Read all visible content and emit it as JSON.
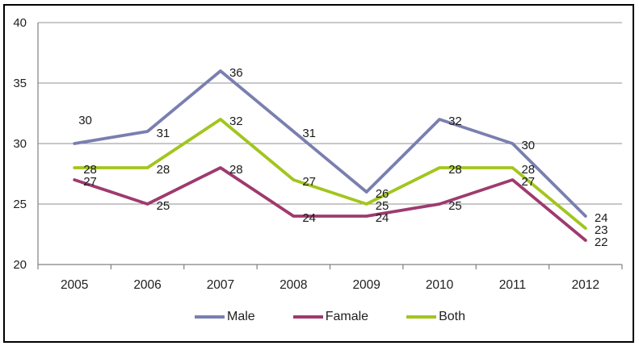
{
  "chart_data": {
    "type": "line",
    "categories": [
      "2005",
      "2006",
      "2007",
      "2008",
      "2009",
      "2010",
      "2011",
      "2012"
    ],
    "series": [
      {
        "name": "Male",
        "values": [
          30,
          31,
          36,
          31,
          26,
          32,
          30,
          24
        ],
        "color": "#7A7FB0"
      },
      {
        "name": "Famale",
        "values": [
          27,
          25,
          28,
          24,
          24,
          25,
          27,
          22
        ],
        "color": "#9E3A6E"
      },
      {
        "name": "Both",
        "values": [
          28,
          28,
          32,
          27,
          25,
          28,
          28,
          23
        ],
        "color": "#A2C51D"
      }
    ],
    "title": "",
    "xlabel": "",
    "ylabel": "",
    "ylim": [
      20,
      40
    ],
    "yticks": [
      20,
      25,
      30,
      35,
      40
    ],
    "grid": true,
    "legend_position": "bottom",
    "data_labels": true,
    "label_offset_overrides": [
      {
        "series": 0,
        "index": 0,
        "dx": 5,
        "dy": -24
      }
    ]
  },
  "frame": {
    "border_color": "#000000",
    "background": "#FFFFFF"
  },
  "axes": {
    "grid_color": "#909090",
    "axis_color": "#808080",
    "label_color": "#202020"
  }
}
